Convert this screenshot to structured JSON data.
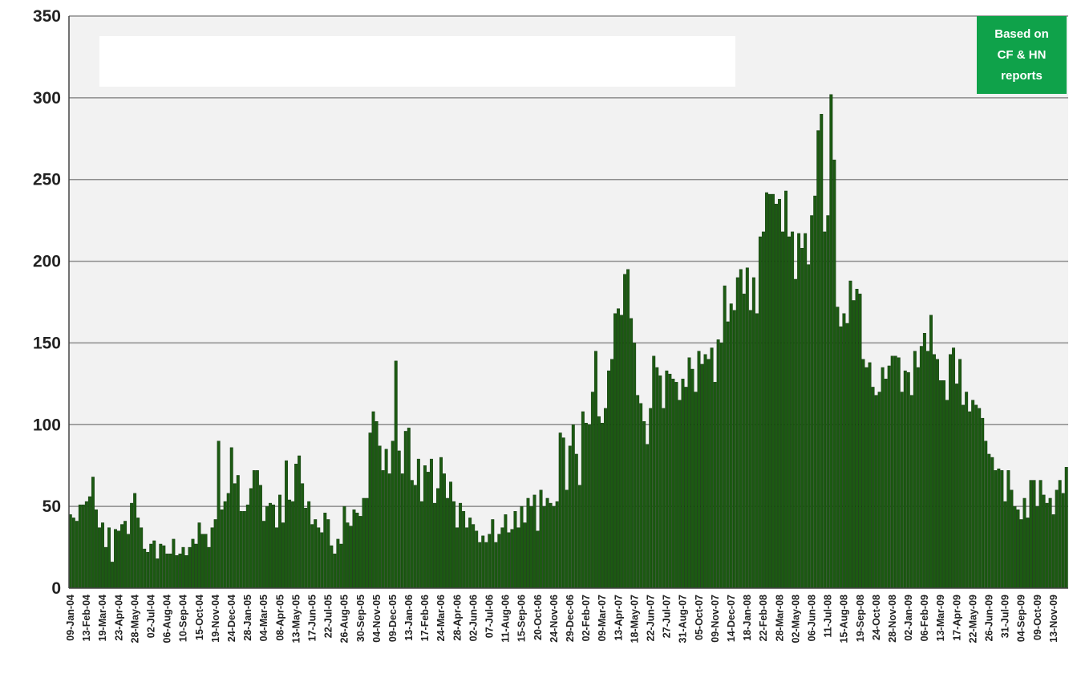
{
  "annotation": {
    "text": "Based on\nCF & HN\nreports",
    "color": "#0fa24a"
  },
  "chart_data": {
    "type": "bar",
    "title": "",
    "xlabel": "",
    "ylabel": "",
    "ylim": [
      0,
      350
    ],
    "yticks": [
      0,
      50,
      100,
      150,
      200,
      250,
      300,
      350
    ],
    "grid": true,
    "legend": "none",
    "bar_color": "#1c5a12",
    "plot_background": "#f2f2f2",
    "tick_labels": [
      "09-Jan-04",
      "13-Feb-04",
      "19-Mar-04",
      "23-Apr-04",
      "28-May-04",
      "02-Jul-04",
      "06-Aug-04",
      "10-Sep-04",
      "15-Oct-04",
      "19-Nov-04",
      "24-Dec-04",
      "28-Jan-05",
      "04-Mar-05",
      "08-Apr-05",
      "13-May-05",
      "17-Jun-05",
      "22-Jul-05",
      "26-Aug-05",
      "30-Sep-05",
      "04-Nov-05",
      "09-Dec-05",
      "13-Jan-06",
      "17-Feb-06",
      "24-Mar-06",
      "28-Apr-06",
      "02-Jun-06",
      "07-Jul-06",
      "11-Aug-06",
      "15-Sep-06",
      "20-Oct-06",
      "24-Nov-06",
      "29-Dec-06",
      "02-Feb-07",
      "09-Mar-07",
      "13-Apr-07",
      "18-May-07",
      "22-Jun-07",
      "27-Jul-07",
      "31-Aug-07",
      "05-Oct-07",
      "09-Nov-07",
      "14-Dec-07",
      "18-Jan-08",
      "22-Feb-08",
      "28-Mar-08",
      "02-May-08",
      "06-Jun-08",
      "11-Jul-08",
      "15-Aug-08",
      "19-Sep-08",
      "24-Oct-08",
      "28-Nov-08",
      "02-Jan-09",
      "06-Feb-09",
      "13-Mar-09",
      "17-Apr-09",
      "22-May-09",
      "26-Jun-09",
      "31-Jul-09",
      "04-Sep-09",
      "09-Oct-09",
      "13-Nov-09"
    ],
    "values": [
      45,
      43,
      41,
      51,
      51,
      53,
      56,
      68,
      48,
      37,
      40,
      25,
      37,
      16,
      36,
      35,
      39,
      41,
      33,
      52,
      58,
      43,
      37,
      24,
      22,
      27,
      29,
      18,
      27,
      26,
      21,
      21,
      30,
      20,
      21,
      25,
      20,
      25,
      30,
      27,
      40,
      33,
      33,
      25,
      37,
      42,
      90,
      48,
      53,
      58,
      86,
      64,
      69,
      47,
      47,
      51,
      61,
      72,
      72,
      63,
      41,
      50,
      52,
      51,
      37,
      57,
      40,
      78,
      54,
      53,
      76,
      81,
      64,
      49,
      53,
      39,
      42,
      37,
      34,
      46,
      42,
      26,
      21,
      30,
      27,
      50,
      40,
      38,
      48,
      46,
      44,
      55,
      55,
      95,
      108,
      102,
      87,
      72,
      85,
      70,
      90,
      139,
      84,
      70,
      96,
      98,
      66,
      63,
      79,
      53,
      75,
      71,
      79,
      52,
      61,
      80,
      70,
      55,
      65,
      53,
      37,
      52,
      47,
      37,
      43,
      39,
      35,
      28,
      32,
      28,
      33,
      42,
      28,
      33,
      37,
      45,
      34,
      36,
      47,
      37,
      50,
      40,
      55,
      50,
      57,
      35,
      60,
      50,
      55,
      52,
      50,
      53,
      95,
      92,
      60,
      87,
      100,
      82,
      63,
      108,
      101,
      100,
      120,
      145,
      105,
      101,
      110,
      133,
      140,
      168,
      171,
      167,
      192,
      195,
      165,
      150,
      118,
      113,
      102,
      88,
      110,
      142,
      135,
      130,
      110,
      133,
      131,
      128,
      126,
      115,
      128,
      123,
      141,
      134,
      120,
      145,
      137,
      143,
      140,
      147,
      126,
      152,
      150,
      185,
      163,
      174,
      170,
      190,
      195,
      180,
      196,
      170,
      190,
      168,
      215,
      218,
      242,
      241,
      241,
      235,
      238,
      218,
      243,
      215,
      218,
      189,
      217,
      208,
      217,
      198,
      228,
      240,
      280,
      290,
      218,
      228,
      302,
      262,
      172,
      160,
      168,
      162,
      188,
      176,
      183,
      180,
      140,
      135,
      138,
      123,
      118,
      120,
      135,
      128,
      136,
      142,
      142,
      141,
      120,
      133,
      132,
      118,
      145,
      135,
      148,
      156,
      145,
      167,
      143,
      140,
      127,
      127,
      115,
      143,
      147,
      125,
      140,
      112,
      120,
      108,
      115,
      112,
      110,
      104,
      90,
      82,
      80,
      72,
      73,
      72,
      53,
      72,
      60,
      50,
      48,
      42,
      55,
      43,
      66,
      66,
      50,
      66,
      57,
      52,
      55,
      45,
      60,
      66,
      58,
      74
    ],
    "annotation": "Based on\nCF & HN\nreports"
  }
}
